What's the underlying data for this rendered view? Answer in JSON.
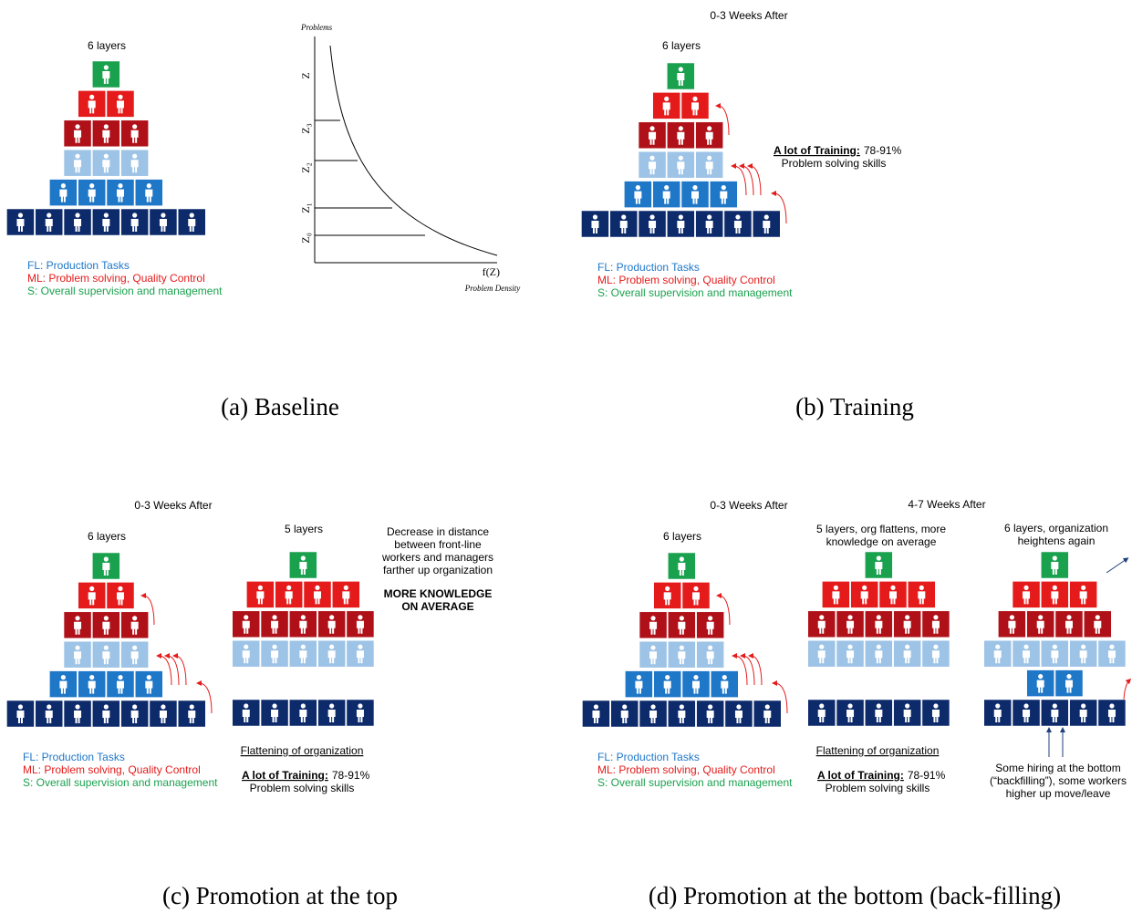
{
  "panels": [
    {
      "caption": "(a) Baseline",
      "pyramid_labels": [
        "6 layers"
      ],
      "legend": [
        "FL: Production Tasks",
        "ML: Problem solving, Quality Control",
        "S: Overall supervision and management"
      ],
      "density_chart": {
        "y_label": "Problems",
        "x_label": "f(Z)",
        "x_title": "Problem Density",
        "z_labels": [
          "Z",
          "Z₃",
          "Z₂",
          "Z₁",
          "Z₀"
        ]
      }
    },
    {
      "caption": "(b) Training",
      "titles": [
        "0-3 Weeks After"
      ],
      "pyramid_labels": [
        "6 layers"
      ],
      "training": {
        "label": "A lot of Training:",
        "value": "78-91%",
        "detail": "Problem solving skills"
      },
      "legend": [
        "FL: Production Tasks",
        "ML: Problem solving, Quality Control",
        "S: Overall supervision and management"
      ]
    },
    {
      "caption": "(c) Promotion at the top",
      "titles": [
        "0-3 Weeks After"
      ],
      "pyramid_labels": [
        "6 layers",
        "5 layers"
      ],
      "note": [
        "Decrease in distance",
        "between front-line",
        "workers and managers",
        "farther up organization"
      ],
      "emphasis": [
        "MORE KNOWLEDGE",
        "ON AVERAGE"
      ],
      "flattening": "Flattening of organization",
      "training": {
        "label": "A lot of Training:",
        "value": "78-91%",
        "detail": "Problem solving skills"
      },
      "legend": [
        "FL: Production Tasks",
        "ML: Problem solving, Quality Control",
        "S: Overall supervision and management"
      ]
    },
    {
      "caption": "(d) Promotion at the bottom (back-filling)",
      "titles": [
        "0-3 Weeks After",
        "4-7 Weeks After"
      ],
      "pyramid_labels": [
        "6 layers"
      ],
      "middle_label": [
        "5 layers, org flattens, more",
        "knowledge on average"
      ],
      "right_label": [
        "6 layers, organization",
        "heightens again"
      ],
      "flattening": "Flattening of organization",
      "training": {
        "label": "A lot of Training:",
        "value": "78-91%",
        "detail": "Problem solving skills"
      },
      "hiring": [
        "Some hiring at the bottom",
        "(“backfilling”), some workers",
        "higher up move/leave"
      ],
      "legend": [
        "FL: Production Tasks",
        "ML: Problem solving, Quality Control",
        "S: Overall supervision and management"
      ]
    }
  ]
}
